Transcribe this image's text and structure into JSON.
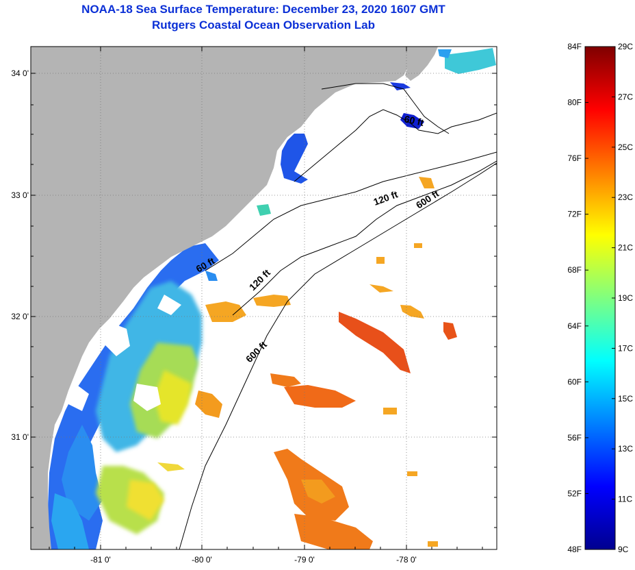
{
  "title": {
    "line1": "NOAA-18 Sea Surface Temperature:  December 23, 2020 1607 GMT",
    "line2": "Rutgers Coastal Ocean Observation Lab"
  },
  "map": {
    "land_color": "#b4b4b4",
    "ocean_no_data_color": "#ffffff",
    "lat_labels": [
      "34 0'",
      "33 0'",
      "32 0'",
      "31 0'"
    ],
    "lon_labels": [
      "-81 0'",
      "-80 0'",
      "-79 0'",
      "-78 0'"
    ],
    "isobath_labels": [
      "60 ft",
      "60 ft",
      "120 ft",
      "120 ft",
      "600 ft",
      "600 ft"
    ]
  },
  "colorbar": {
    "fahrenheit_labels": [
      "84F",
      "80F",
      "76F",
      "72F",
      "68F",
      "64F",
      "60F",
      "56F",
      "52F",
      "48F"
    ],
    "celsius_labels": [
      "29C",
      "27C",
      "25C",
      "23C",
      "21C",
      "19C",
      "17C",
      "15C",
      "13C",
      "11C",
      "9C"
    ],
    "min_c": 9,
    "max_c": 29,
    "colormap": "jet"
  }
}
